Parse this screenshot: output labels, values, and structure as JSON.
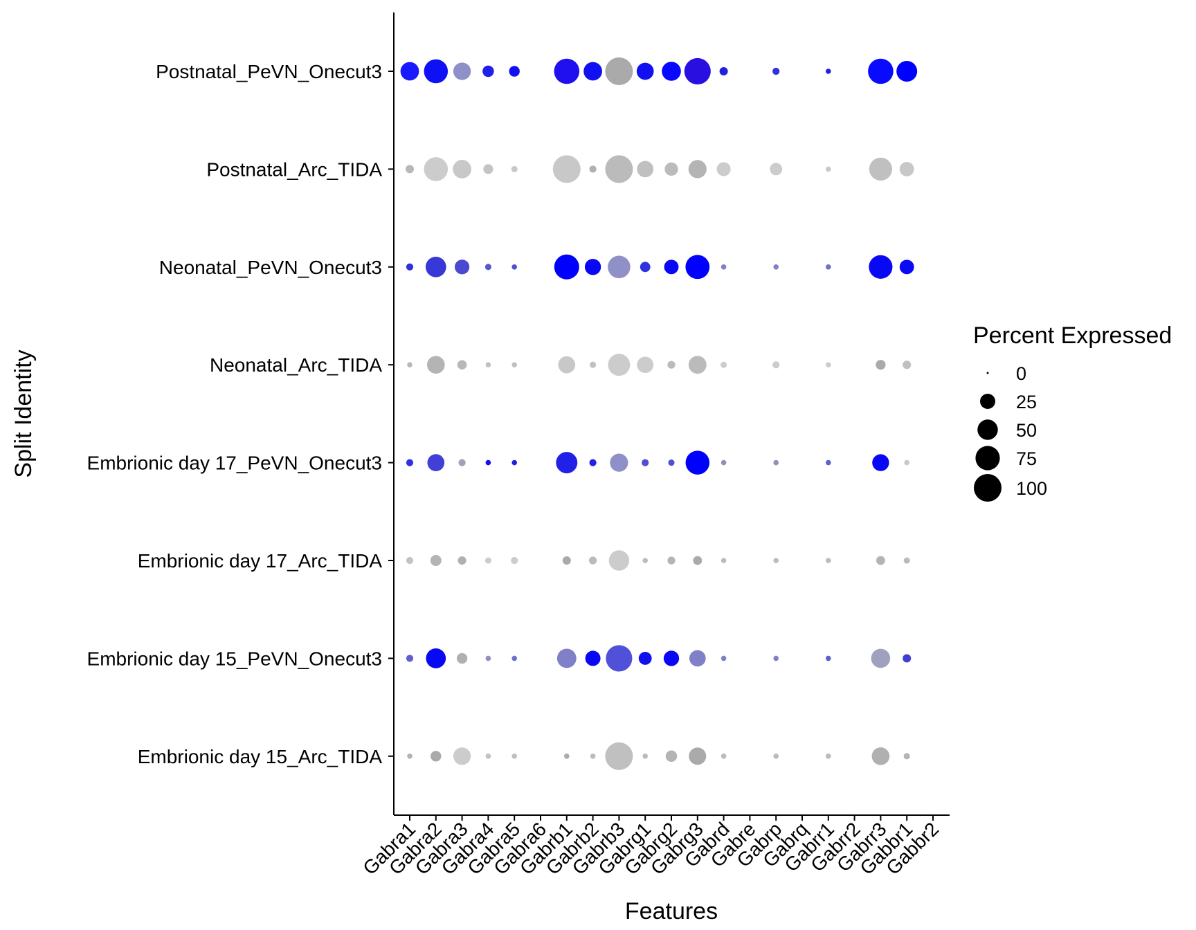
{
  "chart_data": {
    "type": "dotplot",
    "xlabel": "Features",
    "ylabel": "Split Identity",
    "features": [
      "Gabra1",
      "Gabra2",
      "Gabra3",
      "Gabra4",
      "Gabra5",
      "Gabra6",
      "Gabrb1",
      "Gabrb2",
      "Gabrb3",
      "Gabrg1",
      "Gabrg2",
      "Gabrg3",
      "Gabrd",
      "Gabre",
      "Gabrp",
      "Gabrq",
      "Gabrr1",
      "Gabrr2",
      "Gabrr3",
      "Gabbr1",
      "Gabbr2"
    ],
    "identities": [
      "Postnatal_PeVN_Onecut3",
      "Postnatal_Arc_TIDA",
      "Neonatal_PeVN_Onecut3",
      "Neonatal_Arc_TIDA",
      "Embrionic day 17_PeVN_Onecut3",
      "Embrionic day 17_Arc_TIDA",
      "Embrionic day 15_PeVN_Onecut3",
      "Embrionic day 15_Arc_TIDA"
    ],
    "percent_expressed": [
      [
        40,
        72,
        35,
        12,
        10,
        0,
        82,
        40,
        100,
        33,
        43,
        90,
        5,
        0,
        3,
        0,
        1,
        0,
        82,
        52,
        0
      ],
      [
        5,
        72,
        40,
        8,
        2,
        0,
        100,
        3,
        100,
        30,
        18,
        38,
        20,
        0,
        15,
        0,
        1,
        0,
        66,
        22,
        0
      ],
      [
        3,
        51,
        23,
        2,
        1,
        0,
        79,
        29,
        63,
        9,
        22,
        73,
        1,
        0,
        1,
        0,
        1,
        0,
        70,
        22,
        0
      ],
      [
        1,
        36,
        7,
        1,
        1,
        0,
        33,
        2,
        60,
        30,
        4,
        37,
        2,
        0,
        3,
        0,
        1,
        0,
        8,
        5,
        0
      ],
      [
        3,
        33,
        3,
        1,
        1,
        0,
        56,
        3,
        38,
        3,
        2,
        72,
        1,
        0,
        1,
        0,
        1,
        0,
        32,
        1,
        0
      ],
      [
        3,
        11,
        5,
        2,
        3,
        0,
        5,
        4,
        50,
        1,
        4,
        6,
        1,
        0,
        1,
        0,
        1,
        0,
        6,
        2,
        0
      ],
      [
        3,
        47,
        10,
        1,
        1,
        0,
        44,
        25,
        90,
        17,
        26,
        30,
        1,
        0,
        1,
        0,
        1,
        0,
        43,
        5,
        0
      ],
      [
        1,
        10,
        35,
        1,
        1,
        0,
        1,
        1,
        100,
        1,
        12,
        34,
        1,
        0,
        1,
        0,
        1,
        0,
        36,
        2,
        0
      ]
    ],
    "dot_colors": [
      [
        "#1919ff",
        "#1010f5",
        "#9090c8",
        "#2020e6",
        "#1010f0",
        null,
        "#2010f0",
        "#1010f0",
        "#aaaaaa",
        "#1010f0",
        "#0808ff",
        "#2a10e0",
        "#2020e0",
        null,
        "#3030e0",
        null,
        "#2020e0",
        null,
        "#0a0aff",
        "#0000ff",
        null
      ],
      [
        "#b8b8b8",
        "#cccccc",
        "#c8c8c8",
        "#c4c4c4",
        "#c8c8c8",
        null,
        "#c8c8c8",
        "#b0b0b0",
        "#bbbbbb",
        "#c0c0c0",
        "#bbbbbb",
        "#b4b4b4",
        "#cccccc",
        null,
        "#cccccc",
        null,
        "#c8c8c8",
        null,
        "#c0c0c0",
        "#c8c8c8",
        null
      ],
      [
        "#3030e0",
        "#3838d8",
        "#4a4ad0",
        "#5858d0",
        "#5050d0",
        null,
        "#0000ff",
        "#0808f5",
        "#9090c8",
        "#3030e0",
        "#0808f5",
        "#0000ff",
        "#8080c8",
        null,
        "#8080c8",
        null,
        "#7070c8",
        null,
        "#0808f5",
        "#0a0af5",
        null
      ],
      [
        "#b8b8b8",
        "#b4b4b4",
        "#b8b8b8",
        "#c0c0c0",
        "#c0c0c0",
        null,
        "#c8c8c8",
        "#c0c0c0",
        "#cccccc",
        "#cccccc",
        "#bbbbbb",
        "#bbbbbb",
        "#cccccc",
        null,
        "#cccccc",
        null,
        "#cccccc",
        null,
        "#aaaaaa",
        "#c0c0c0",
        null
      ],
      [
        "#3030e0",
        "#4040d8",
        "#a0a0b8",
        "#1010f0",
        "#2020e0",
        null,
        "#2020e8",
        "#2020e8",
        "#9090c8",
        "#5050d0",
        "#5050d0",
        "#0000ff",
        "#9090b8",
        null,
        "#9090b8",
        null,
        "#6060c8",
        null,
        "#0808f5",
        "#c8c8c8",
        null
      ],
      [
        "#c4c4c4",
        "#b4b4b4",
        "#b0b0b0",
        "#cccccc",
        "#cccccc",
        null,
        "#aaaaaa",
        "#bbbbbb",
        "#cccccc",
        "#bbbbbb",
        "#b4b4b4",
        "#aaaaaa",
        "#bbbbbb",
        null,
        "#bbbbbb",
        null,
        "#bbbbbb",
        null,
        "#b4b4b4",
        "#bbbbbb",
        null
      ],
      [
        "#6060d0",
        "#0808f5",
        "#b0b0b0",
        "#9090c0",
        "#7070c8",
        null,
        "#8080c8",
        "#0808f5",
        "#5050d8",
        "#1010f0",
        "#0808f5",
        "#8080c8",
        "#8080c8",
        null,
        "#8080c8",
        null,
        "#6060c8",
        null,
        "#a0a0c0",
        "#4040d0",
        null
      ],
      [
        "#b4b4b4",
        "#aaaaaa",
        "#cccccc",
        "#c0c0c0",
        "#c0c0c0",
        null,
        "#aaaaaa",
        "#bbbbbb",
        "#c0c0c0",
        "#bbbbbb",
        "#b4b4b4",
        "#aaaaaa",
        "#bbbbbb",
        null,
        "#bbbbbb",
        null,
        "#bbbbbb",
        null,
        "#b0b0b0",
        "#b4b4b4",
        null
      ]
    ],
    "legend": {
      "title": "Percent Expressed",
      "placement": "right",
      "values": [
        0,
        25,
        50,
        75,
        100
      ],
      "labels": [
        "0",
        "25",
        "50",
        "75",
        "100"
      ]
    },
    "grid": false
  }
}
